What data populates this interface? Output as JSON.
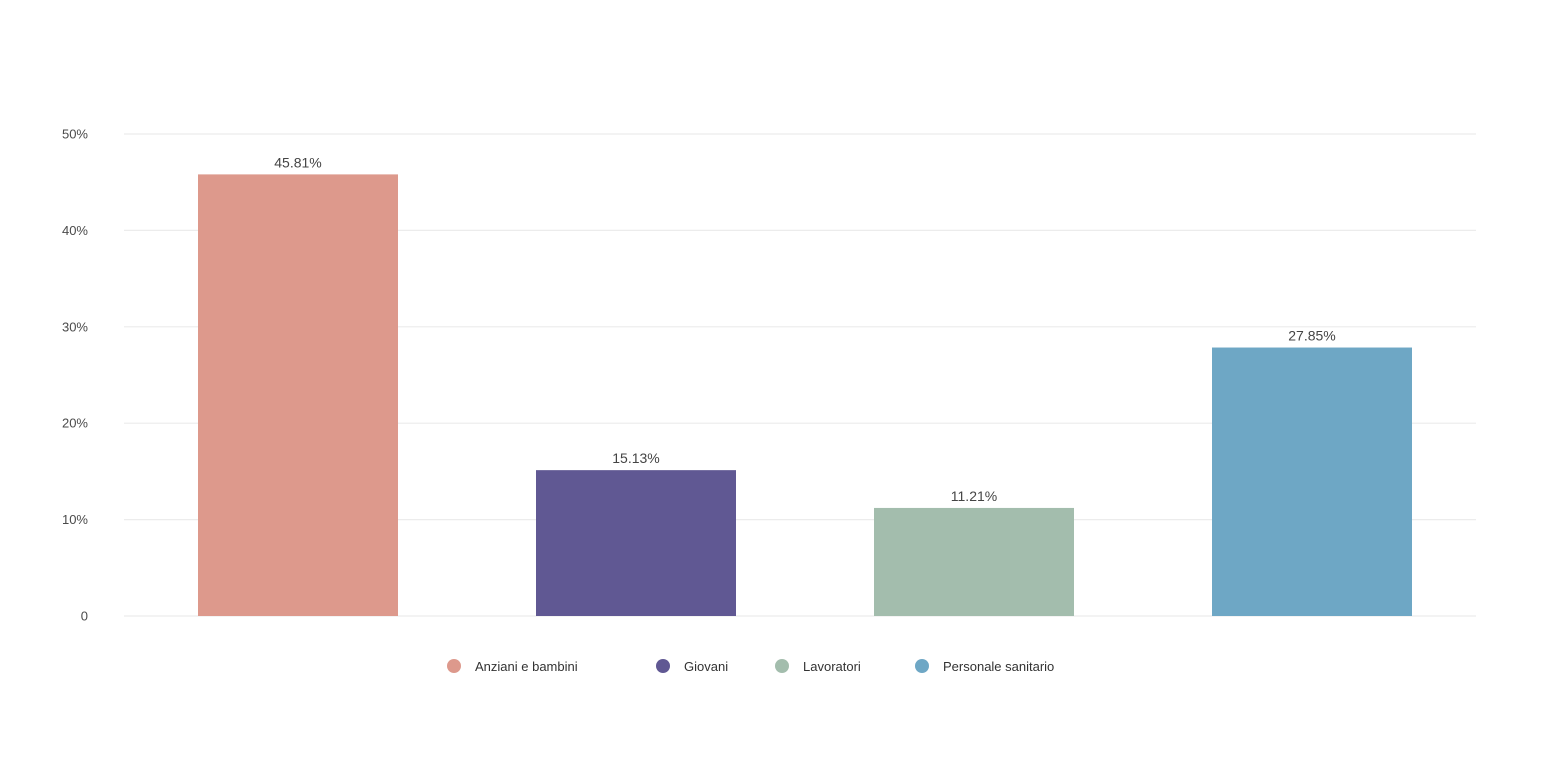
{
  "chart_data": {
    "type": "bar",
    "title": "",
    "xlabel": "",
    "ylabel": "",
    "ylim": [
      0,
      50
    ],
    "y_ticks": [
      {
        "value": 0,
        "label": "0"
      },
      {
        "value": 10,
        "label": "10%"
      },
      {
        "value": 20,
        "label": "20%"
      },
      {
        "value": 30,
        "label": "30%"
      },
      {
        "value": 40,
        "label": "40%"
      },
      {
        "value": 50,
        "label": "50%"
      }
    ],
    "grid": true,
    "legend_position": "bottom",
    "categories": [
      "Anziani e bambini",
      "Giovani",
      "Lavoratori",
      "Personale sanitario"
    ],
    "values": [
      45.81,
      15.13,
      11.21,
      27.85
    ],
    "value_labels": [
      "45.81%",
      "15.13%",
      "11.21%",
      "27.85%"
    ],
    "colors": [
      "#dd998c",
      "#605893",
      "#a3bdad",
      "#6ea7c5"
    ]
  }
}
